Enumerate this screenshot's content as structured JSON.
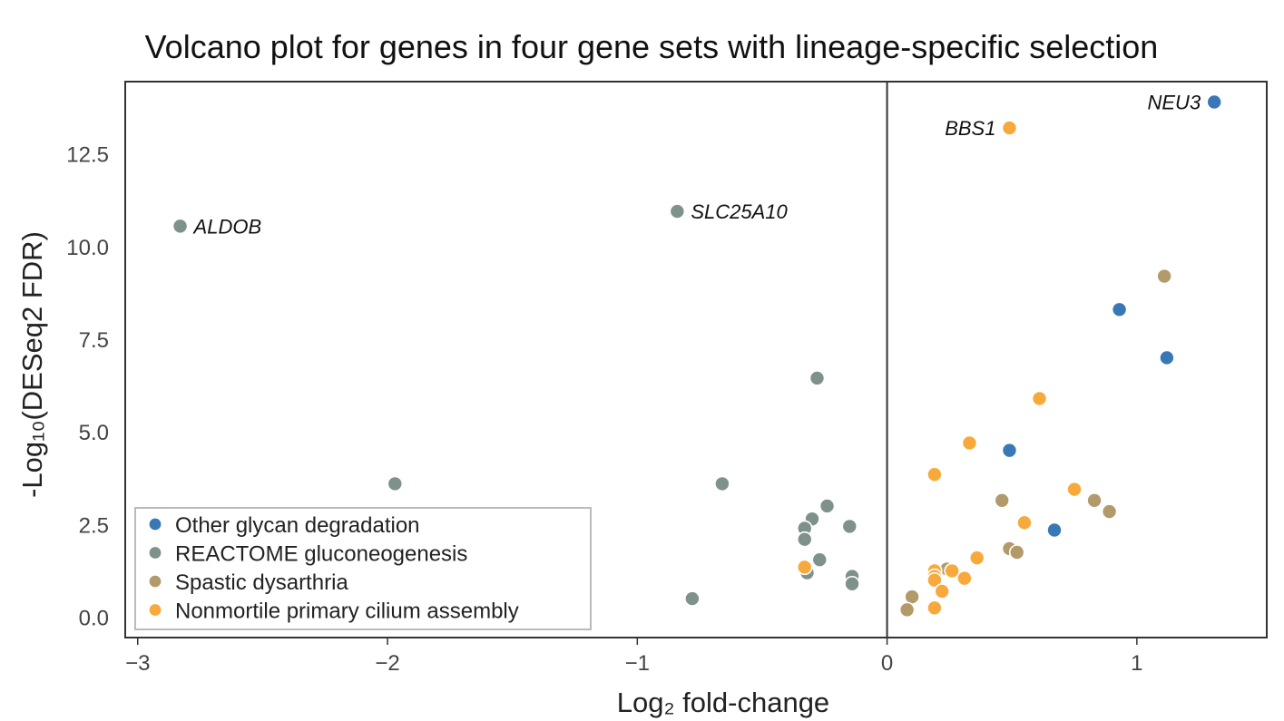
{
  "chart_data": {
    "type": "scatter",
    "title": "Volcano plot for genes in four gene sets with lineage-specific selection",
    "xlabel": "Log₂ fold-change",
    "ylabel": "-Log₁₀(DESeq2 FDR)",
    "xlim": [
      -3.05,
      1.52
    ],
    "ylim": [
      -0.55,
      14.45
    ],
    "xticks": [
      -3,
      -2,
      -1,
      0,
      1
    ],
    "xtick_labels": [
      "−3",
      "−2",
      "−1",
      "0",
      "1"
    ],
    "yticks": [
      0,
      2.5,
      5,
      7.5,
      10,
      12.5
    ],
    "ytick_labels": [
      "0.0",
      "2.5",
      "5.0",
      "7.5",
      "10.0",
      "12.5"
    ],
    "vline_x": 0,
    "grid": false,
    "legend_position": "lower-left",
    "series": [
      {
        "name": "Other glycan degradation",
        "color": "#3a78b5",
        "points": [
          {
            "x": 1.31,
            "y": 13.9,
            "label": "NEU3"
          },
          {
            "x": 0.93,
            "y": 8.3
          },
          {
            "x": 1.12,
            "y": 7.0
          },
          {
            "x": 0.49,
            "y": 4.5
          },
          {
            "x": 0.67,
            "y": 2.35
          }
        ]
      },
      {
        "name": "REACTOME gluconeogenesis",
        "color": "#7f928a",
        "points": [
          {
            "x": -2.83,
            "y": 10.55,
            "label": "ALDOB"
          },
          {
            "x": -0.84,
            "y": 10.95,
            "label": "SLC25A10"
          },
          {
            "x": -0.28,
            "y": 6.45
          },
          {
            "x": -1.97,
            "y": 3.6
          },
          {
            "x": -0.66,
            "y": 3.6
          },
          {
            "x": -0.24,
            "y": 3.0
          },
          {
            "x": -0.3,
            "y": 2.65
          },
          {
            "x": -0.33,
            "y": 2.4
          },
          {
            "x": -0.15,
            "y": 2.45
          },
          {
            "x": -0.33,
            "y": 2.1
          },
          {
            "x": -0.27,
            "y": 1.55
          },
          {
            "x": -0.32,
            "y": 1.2
          },
          {
            "x": -0.14,
            "y": 1.1
          },
          {
            "x": -0.14,
            "y": 0.9
          },
          {
            "x": -0.78,
            "y": 0.5
          }
        ]
      },
      {
        "name": "Spastic dysarthria",
        "color": "#b39a6b",
        "points": [
          {
            "x": 1.11,
            "y": 9.2
          },
          {
            "x": 0.46,
            "y": 3.15
          },
          {
            "x": 0.83,
            "y": 3.15
          },
          {
            "x": 0.89,
            "y": 2.85
          },
          {
            "x": 0.49,
            "y": 1.85
          },
          {
            "x": 0.52,
            "y": 1.75
          },
          {
            "x": 0.1,
            "y": 0.55
          },
          {
            "x": 0.08,
            "y": 0.2
          },
          {
            "x": 0.24,
            "y": 1.3
          }
        ]
      },
      {
        "name": "Nonmortile primary cilium assembly",
        "color": "#f8a93b",
        "points": [
          {
            "x": 0.49,
            "y": 13.2,
            "label": "BBS1"
          },
          {
            "x": 0.61,
            "y": 5.9
          },
          {
            "x": 0.33,
            "y": 4.7
          },
          {
            "x": 0.19,
            "y": 3.85
          },
          {
            "x": 0.75,
            "y": 3.45
          },
          {
            "x": 0.55,
            "y": 2.55
          },
          {
            "x": 0.36,
            "y": 1.6
          },
          {
            "x": 0.26,
            "y": 1.25
          },
          {
            "x": 0.19,
            "y": 1.25
          },
          {
            "x": 0.19,
            "y": 1.1
          },
          {
            "x": 0.31,
            "y": 1.05
          },
          {
            "x": 0.19,
            "y": 1.0
          },
          {
            "x": 0.22,
            "y": 0.7
          },
          {
            "x": 0.19,
            "y": 0.25
          },
          {
            "x": -0.33,
            "y": 1.35
          }
        ]
      }
    ]
  }
}
